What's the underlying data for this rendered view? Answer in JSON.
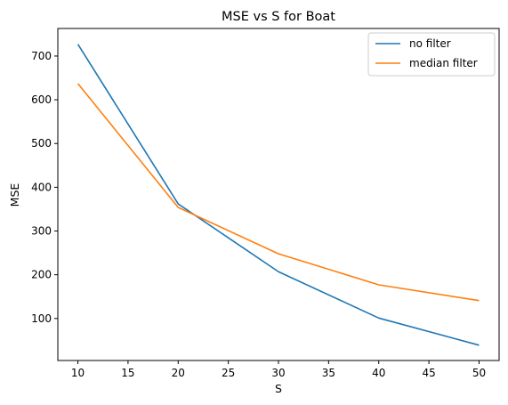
{
  "chart_data": {
    "type": "line",
    "title": "MSE vs S for Boat",
    "xlabel": "S",
    "ylabel": "MSE",
    "x": [
      10,
      20,
      30,
      40,
      50
    ],
    "xlim": [
      8,
      52
    ],
    "ylim": [
      4,
      763
    ],
    "xticks": [
      10,
      15,
      20,
      25,
      30,
      35,
      40,
      45,
      50
    ],
    "yticks": [
      100,
      200,
      300,
      400,
      500,
      600,
      700
    ],
    "grid": false,
    "legend_position": "top-right",
    "series": [
      {
        "name": "no filter",
        "color": "#1f77b4",
        "values": [
          727,
          362,
          207,
          101,
          39
        ]
      },
      {
        "name": "median filter",
        "color": "#ff7f0e",
        "values": [
          637,
          354,
          248,
          177,
          141
        ]
      }
    ]
  }
}
